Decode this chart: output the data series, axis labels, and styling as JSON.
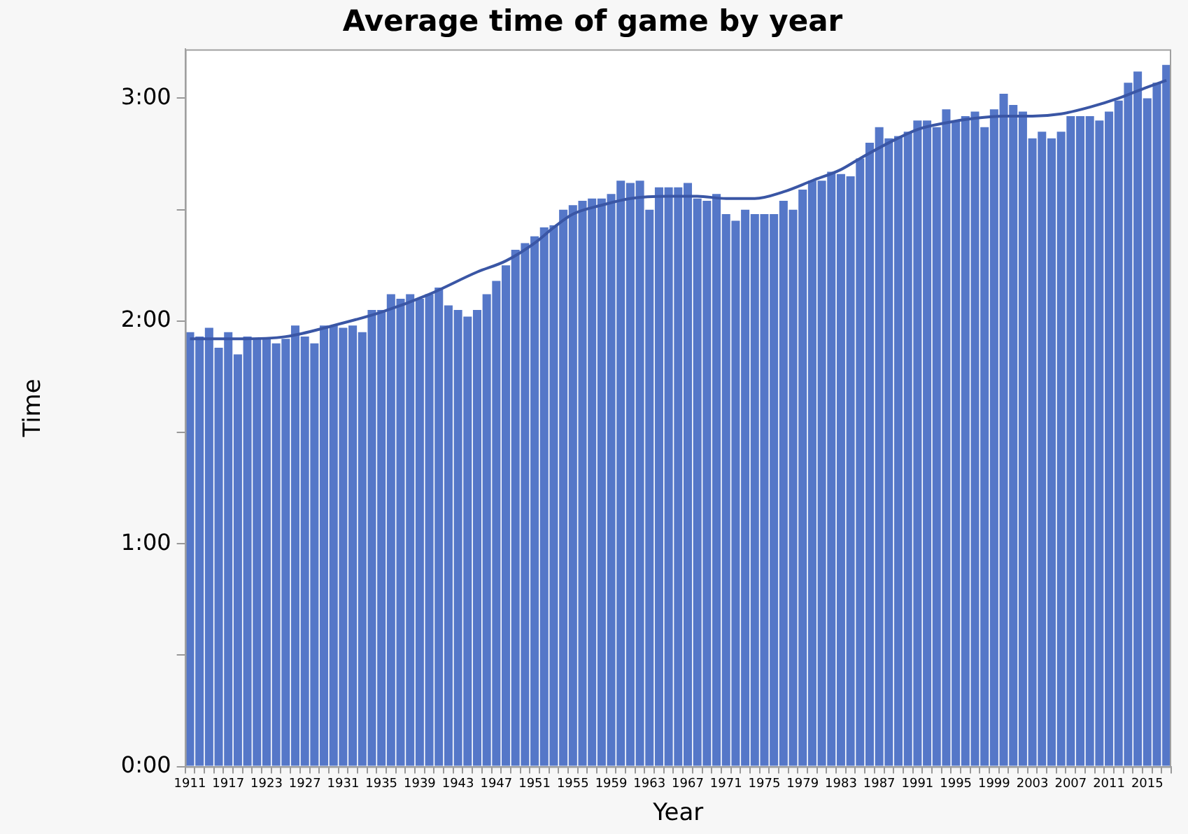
{
  "chart_data": {
    "type": "bar",
    "title": "Average time of game by year",
    "xlabel": "Year",
    "ylabel": "Time",
    "categories": [
      "1911",
      null,
      null,
      null,
      "1917",
      null,
      null,
      null,
      "1923",
      null,
      null,
      null,
      "1927",
      null,
      null,
      null,
      "1931",
      null,
      null,
      null,
      "1935",
      null,
      null,
      null,
      "1939",
      null,
      null,
      null,
      "1943",
      null,
      null,
      null,
      "1947",
      null,
      null,
      null,
      "1951",
      null,
      null,
      null,
      "1955",
      null,
      null,
      null,
      "1959",
      null,
      null,
      null,
      "1963",
      null,
      null,
      null,
      "1967",
      null,
      null,
      null,
      "1971",
      null,
      null,
      null,
      "1975",
      null,
      null,
      null,
      "1979",
      null,
      null,
      null,
      "1983",
      null,
      null,
      null,
      "1987",
      null,
      null,
      null,
      "1991",
      null,
      null,
      null,
      "1995",
      null,
      null,
      null,
      "1999",
      null,
      null,
      null,
      "2003",
      null,
      null,
      null,
      "2007",
      null,
      null,
      null,
      "2011",
      null,
      null,
      null,
      "2015",
      null,
      null
    ],
    "series": [
      {
        "color": "#5577c8",
        "values": [
          1.95,
          1.93,
          1.97,
          1.88,
          1.95,
          1.85,
          1.93,
          1.92,
          1.92,
          1.9,
          1.92,
          1.98,
          1.93,
          1.9,
          1.98,
          1.98,
          1.97,
          1.98,
          1.95,
          2.05,
          2.05,
          2.12,
          2.1,
          2.12,
          2.1,
          2.12,
          2.15,
          2.07,
          2.05,
          2.02,
          2.05,
          2.12,
          2.18,
          2.25,
          2.32,
          2.35,
          2.38,
          2.42,
          2.43,
          2.5,
          2.52,
          2.54,
          2.55,
          2.55,
          2.57,
          2.63,
          2.62,
          2.63,
          2.5,
          2.6,
          2.6,
          2.6,
          2.62,
          2.55,
          2.54,
          2.57,
          2.48,
          2.45,
          2.5,
          2.48,
          2.48,
          2.48,
          2.54,
          2.5,
          2.59,
          2.63,
          2.63,
          2.67,
          2.66,
          2.65,
          2.73,
          2.8,
          2.87,
          2.82,
          2.83,
          2.85,
          2.9,
          2.9,
          2.87,
          2.95,
          2.9,
          2.92,
          2.94,
          2.87,
          2.95,
          3.02,
          2.97,
          2.94,
          2.82,
          2.85,
          2.82,
          2.85,
          2.92,
          2.92,
          2.92,
          2.9,
          2.94,
          2.99,
          3.07,
          3.12,
          3.0,
          3.07,
          3.15
        ]
      },
      {
        "type": "line",
        "color": "#3a56a5",
        "values": [
          1.92,
          null,
          null,
          null,
          null,
          1.92,
          null,
          null,
          null,
          null,
          1.93,
          null,
          null,
          null,
          null,
          1.98,
          null,
          null,
          null,
          null,
          2.04,
          null,
          null,
          null,
          null,
          2.12,
          null,
          null,
          null,
          null,
          2.22,
          null,
          null,
          2.27,
          null,
          null,
          2.35,
          null,
          2.42,
          null,
          2.48,
          null,
          null,
          2.52,
          null,
          null,
          2.55,
          null,
          null,
          null,
          2.56,
          null,
          null,
          2.56,
          null,
          null,
          2.55,
          null,
          null,
          2.55,
          null,
          null,
          2.58,
          null,
          null,
          2.63,
          null,
          null,
          2.68,
          null,
          2.73,
          null,
          null,
          2.8,
          null,
          null,
          2.86,
          null,
          null,
          2.89,
          null,
          null,
          2.91,
          null,
          null,
          2.92,
          null,
          null,
          2.92,
          null,
          null,
          2.93,
          null,
          null,
          2.96,
          null,
          null,
          3.0,
          null,
          null,
          3.05,
          null,
          3.08
        ]
      }
    ],
    "ylim": [
      0,
      3.22
    ],
    "yticks": [
      {
        "value": 0,
        "label": "0:00"
      },
      {
        "value": 0.5,
        "label": null
      },
      {
        "value": 1,
        "label": "1:00"
      },
      {
        "value": 1.5,
        "label": null
      },
      {
        "value": 2,
        "label": "2:00"
      },
      {
        "value": 2.5,
        "label": null
      },
      {
        "value": 3,
        "label": "3:00"
      }
    ]
  }
}
